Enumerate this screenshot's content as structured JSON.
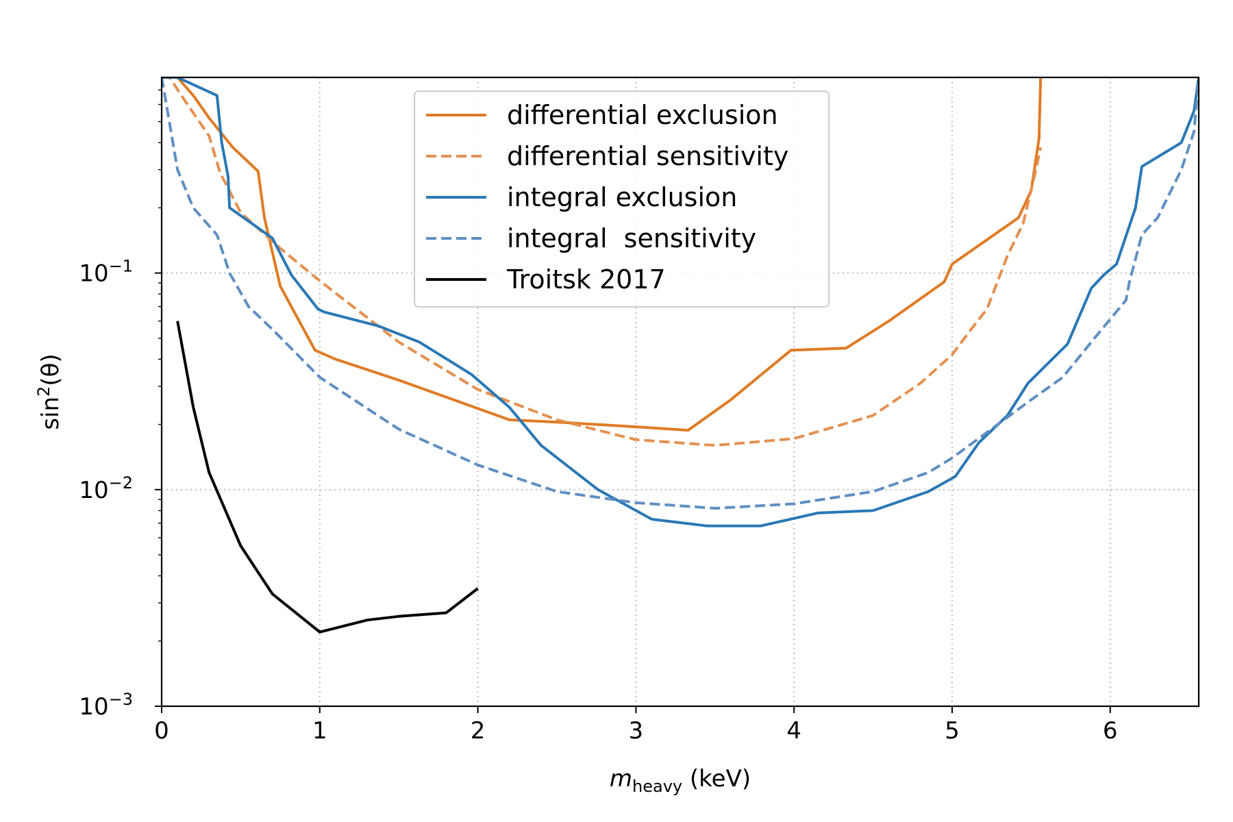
{
  "chart_data": {
    "type": "line",
    "xlabel": {
      "main": "m",
      "sub": "heavy",
      "unit": " (keV)"
    },
    "ylabel": {
      "main": "sin",
      "sup": "2",
      "rest": "(θ)"
    },
    "xlim": [
      0,
      6.56
    ],
    "ylim": [
      0.001,
      0.8
    ],
    "yscale": "log",
    "grid": true,
    "x_ticks": [
      {
        "value": 0,
        "label": "0"
      },
      {
        "value": 1,
        "label": "1"
      },
      {
        "value": 2,
        "label": "2"
      },
      {
        "value": 3,
        "label": "3"
      },
      {
        "value": 4,
        "label": "4"
      },
      {
        "value": 5,
        "label": "5"
      },
      {
        "value": 6,
        "label": "6"
      }
    ],
    "y_ticks": [
      {
        "value": 0.001,
        "base": "10",
        "exp": "−3"
      },
      {
        "value": 0.01,
        "base": "10",
        "exp": "−2"
      },
      {
        "value": 0.1,
        "base": "10",
        "exp": "−1"
      }
    ],
    "legend_position": "top-center",
    "series": [
      {
        "name": "differential exclusion",
        "color": "#e07b24",
        "dash": "solid",
        "x": [
          0.0,
          0.1,
          0.2,
          0.3,
          0.45,
          0.61,
          0.65,
          0.7,
          0.75,
          0.97,
          1.1,
          1.5,
          2.2,
          2.5,
          3.0,
          3.33,
          3.6,
          3.98,
          4.33,
          4.6,
          4.95,
          5.0,
          5.42,
          5.5,
          5.55,
          5.56
        ],
        "y": [
          0.8,
          0.8,
          0.66,
          0.52,
          0.38,
          0.295,
          0.18,
          0.125,
          0.087,
          0.044,
          0.04,
          0.032,
          0.021,
          0.0205,
          0.0195,
          0.0188,
          0.026,
          0.044,
          0.045,
          0.06,
          0.091,
          0.11,
          0.18,
          0.24,
          0.42,
          0.8
        ]
      },
      {
        "name": "differential sensitivity",
        "color": "#e59050",
        "dash": "dashed",
        "x": [
          0.0,
          0.05,
          0.15,
          0.3,
          0.37,
          0.5,
          0.75,
          1.0,
          1.5,
          2.0,
          2.5,
          3.0,
          3.5,
          4.0,
          4.5,
          4.8,
          5.0,
          5.12,
          5.22,
          5.35,
          5.45,
          5.53,
          5.56
        ],
        "y": [
          0.8,
          0.8,
          0.62,
          0.43,
          0.29,
          0.19,
          0.13,
          0.092,
          0.048,
          0.029,
          0.021,
          0.017,
          0.016,
          0.0172,
          0.022,
          0.031,
          0.042,
          0.055,
          0.068,
          0.12,
          0.17,
          0.3,
          0.38
        ]
      },
      {
        "name": "integral exclusion",
        "color": "#2a78b5",
        "dash": "solid",
        "x": [
          0.0,
          0.1,
          0.35,
          0.38,
          0.42,
          0.43,
          0.7,
          0.82,
          0.99,
          1.03,
          1.37,
          1.63,
          1.96,
          2.2,
          2.4,
          2.76,
          3.1,
          3.45,
          3.79,
          4.15,
          4.5,
          4.85,
          5.02,
          5.17,
          5.35,
          5.48,
          5.73,
          5.88,
          5.96,
          6.04,
          6.16,
          6.2,
          6.45,
          6.53,
          6.56
        ],
        "y": [
          0.8,
          0.8,
          0.66,
          0.4,
          0.28,
          0.2,
          0.145,
          0.098,
          0.068,
          0.066,
          0.057,
          0.048,
          0.034,
          0.024,
          0.016,
          0.01,
          0.0073,
          0.0068,
          0.0068,
          0.0078,
          0.008,
          0.0098,
          0.0115,
          0.0165,
          0.022,
          0.031,
          0.047,
          0.085,
          0.098,
          0.11,
          0.2,
          0.31,
          0.4,
          0.56,
          0.8
        ]
      },
      {
        "name": "integral  sensitivity",
        "color": "#5f8fc2",
        "dash": "dashed",
        "x": [
          0.0,
          0.03,
          0.1,
          0.2,
          0.35,
          0.43,
          0.55,
          0.7,
          1.0,
          1.5,
          2.0,
          2.5,
          3.0,
          3.5,
          4.0,
          4.5,
          4.85,
          5.0,
          5.5,
          5.7,
          5.9,
          6.1,
          6.12,
          6.2,
          6.3,
          6.45,
          6.53,
          6.56
        ],
        "y": [
          0.8,
          0.6,
          0.3,
          0.2,
          0.15,
          0.1,
          0.07,
          0.055,
          0.033,
          0.019,
          0.013,
          0.0098,
          0.0087,
          0.0082,
          0.0086,
          0.0098,
          0.012,
          0.014,
          0.026,
          0.033,
          0.05,
          0.075,
          0.09,
          0.15,
          0.18,
          0.3,
          0.45,
          0.8
        ]
      },
      {
        "name": "Troitsk 2017",
        "color": "#000000",
        "dash": "solid",
        "x": [
          0.1,
          0.2,
          0.3,
          0.5,
          0.7,
          1.0,
          1.3,
          1.5,
          1.8,
          2.0
        ],
        "y": [
          0.06,
          0.024,
          0.012,
          0.0055,
          0.0033,
          0.0022,
          0.0025,
          0.0026,
          0.0027,
          0.0035
        ]
      }
    ]
  }
}
